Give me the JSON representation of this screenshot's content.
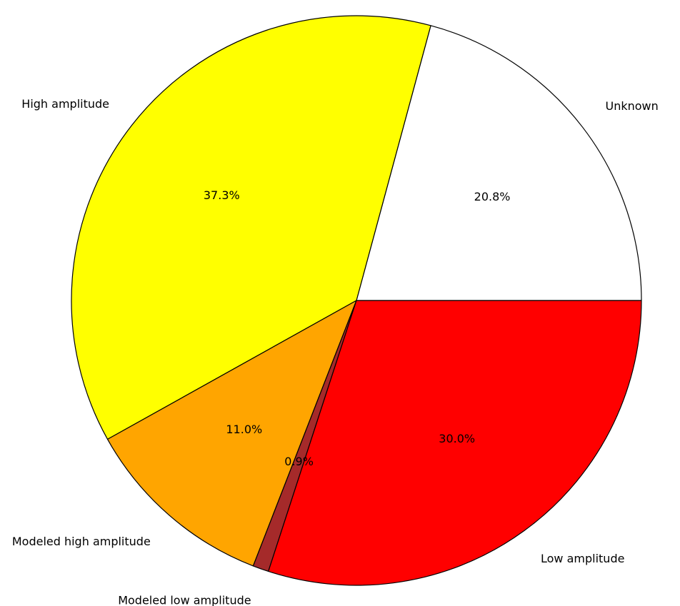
{
  "chart_data": {
    "type": "pie",
    "title": "",
    "start_angle_deg": 0,
    "direction": "counterclockwise",
    "slices": [
      {
        "label": "Unknown",
        "value": 20.8,
        "pct_label": "20.8%",
        "color": "#ffffff"
      },
      {
        "label": "High amplitude",
        "value": 37.3,
        "pct_label": "37.3%",
        "color": "#ffff00"
      },
      {
        "label": "Modeled high amplitude",
        "value": 11.0,
        "pct_label": "11.0%",
        "color": "#ffa500"
      },
      {
        "label": "Modeled low amplitude",
        "value": 0.9,
        "pct_label": "0.9%",
        "color": "#a52a2a"
      },
      {
        "label": "Low amplitude",
        "value": 30.0,
        "pct_label": "30.0%",
        "color": "#ff0000"
      }
    ],
    "edge_color": "#000000"
  }
}
